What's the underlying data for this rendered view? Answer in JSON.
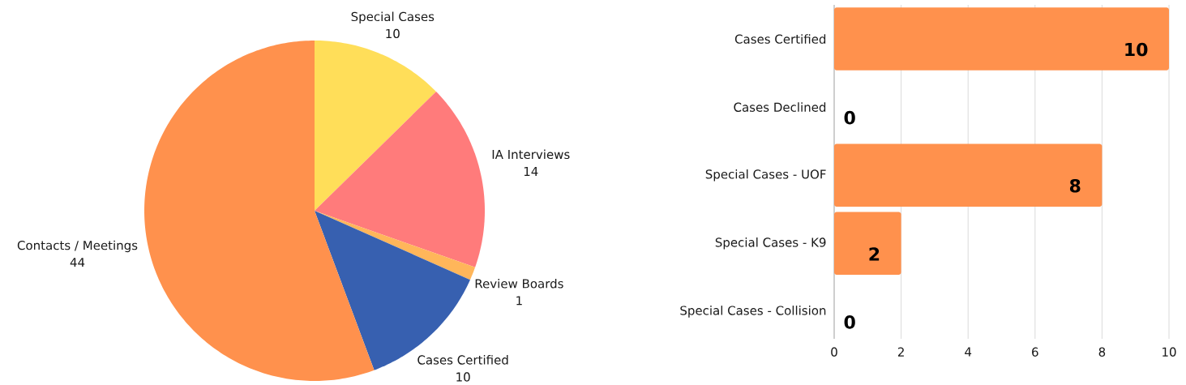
{
  "chart_data": [
    {
      "type": "pie",
      "categories": [
        "Special Cases",
        "IA Interviews",
        "Review Boards",
        "Cases Certified",
        "Contacts / Meetings"
      ],
      "values": [
        10,
        14,
        1,
        10,
        44
      ],
      "colors": [
        "#ffde59",
        "#ff7b7b",
        "#ffb65a",
        "#3760b0",
        "#ff914d"
      ],
      "data_labels": true
    },
    {
      "type": "bar",
      "orientation": "horizontal",
      "categories": [
        "Cases Certified",
        "Cases Declined",
        "Special Cases - UOF",
        "Special Cases - K9",
        "Special Cases - Collision"
      ],
      "values": [
        10,
        0,
        8,
        2,
        0
      ],
      "color": "#ff914d",
      "xlim": [
        0,
        10
      ],
      "xticks": [
        0,
        2,
        4,
        6,
        8,
        10
      ],
      "grid": "x",
      "data_labels": true
    }
  ]
}
